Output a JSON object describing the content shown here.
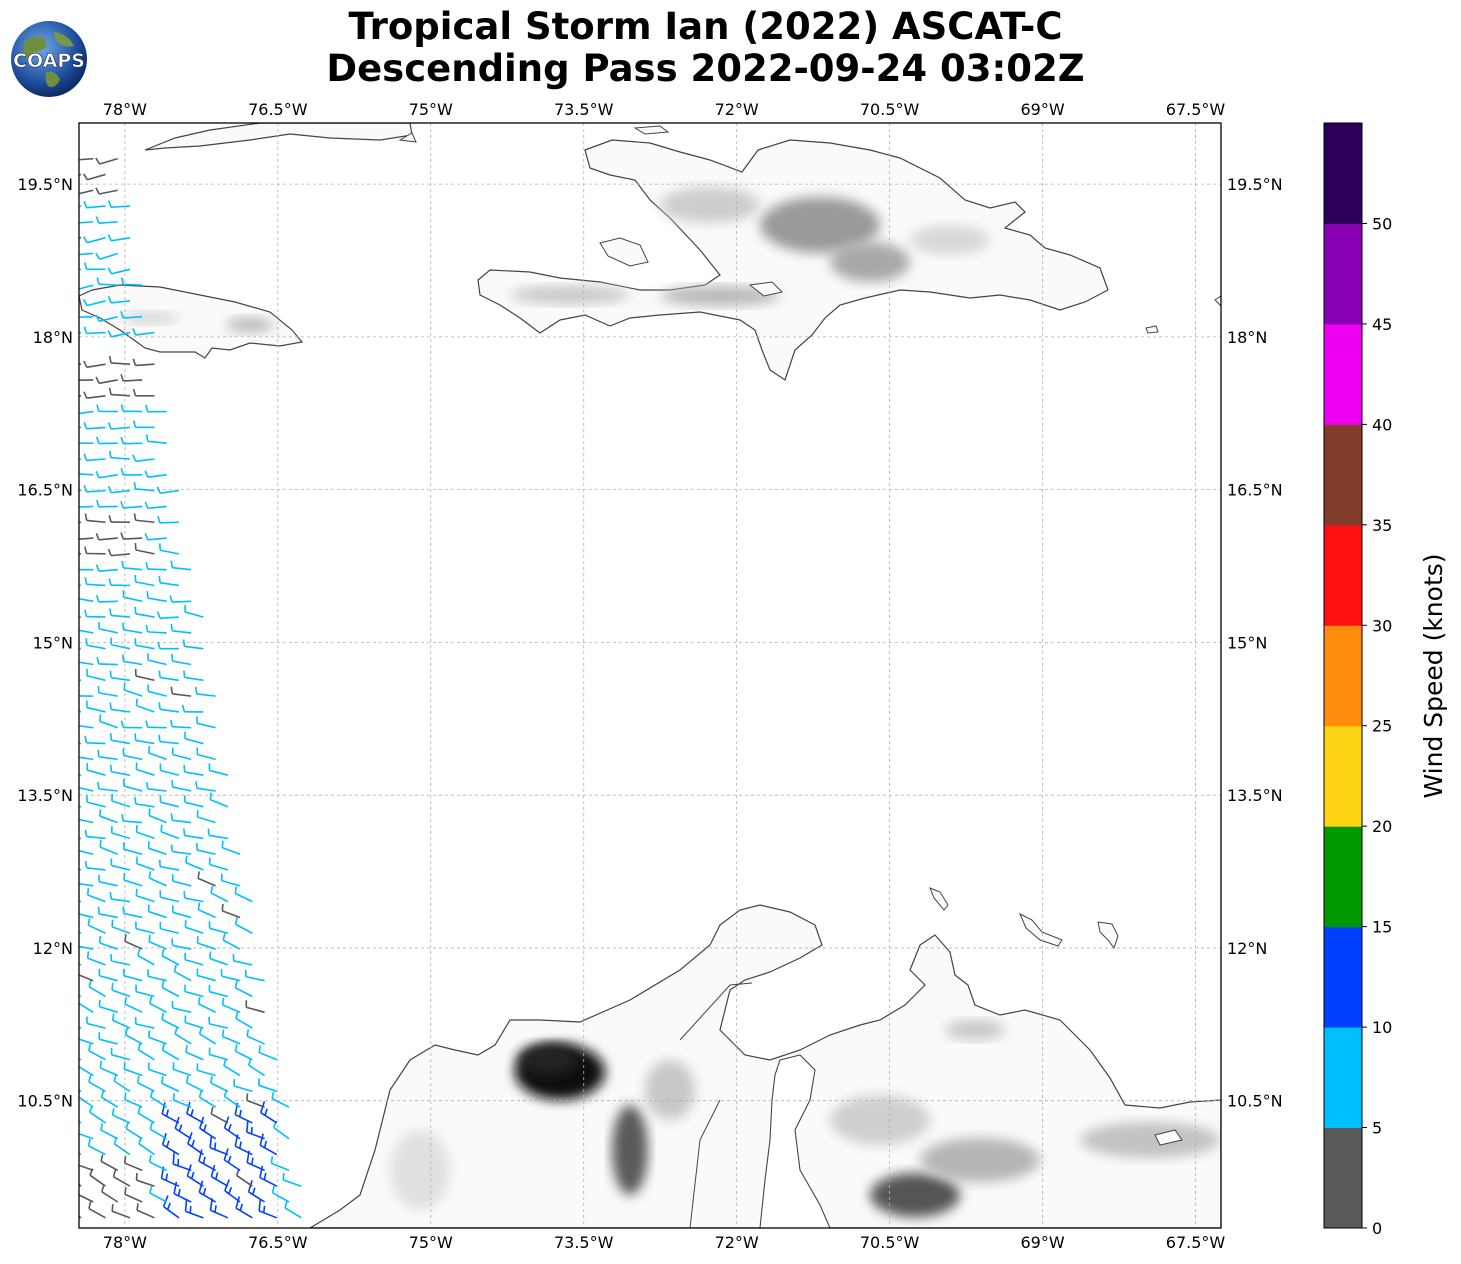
{
  "title_line1": "Tropical Storm Ian (2022) ASCAT-C",
  "title_line2": "Descending Pass 2022-09-24 03:02Z",
  "logo_text": "COAPS",
  "map": {
    "lon_range": [
      -78.45,
      -67.25
    ],
    "lat_range": [
      9.25,
      20.1
    ],
    "lon_ticks": [
      {
        "value": -78,
        "label": "78°W"
      },
      {
        "value": -76.5,
        "label": "76.5°W"
      },
      {
        "value": -75,
        "label": "75°W"
      },
      {
        "value": -73.5,
        "label": "73.5°W"
      },
      {
        "value": -72,
        "label": "72°W"
      },
      {
        "value": -70.5,
        "label": "70.5°W"
      },
      {
        "value": -69,
        "label": "69°W"
      },
      {
        "value": -67.5,
        "label": "67.5°W"
      }
    ],
    "lat_ticks": [
      {
        "value": 19.5,
        "label": "19.5°N"
      },
      {
        "value": 18,
        "label": "18°N"
      },
      {
        "value": 16.5,
        "label": "16.5°N"
      },
      {
        "value": 15,
        "label": "15°N"
      },
      {
        "value": 13.5,
        "label": "13.5°N"
      },
      {
        "value": 12,
        "label": "12°N"
      },
      {
        "value": 10.5,
        "label": "10.5°N"
      }
    ],
    "gridlines": true,
    "coastline_color": "#444444"
  },
  "colorbar": {
    "label": "Wind Speed (knots)",
    "ticks": [
      "0",
      "5",
      "10",
      "15",
      "20",
      "25",
      "30",
      "35",
      "40",
      "45",
      "50"
    ],
    "bins": [
      {
        "min": 0,
        "max": 5,
        "color": "#595959"
      },
      {
        "min": 5,
        "max": 10,
        "color": "#00bfff"
      },
      {
        "min": 10,
        "max": 15,
        "color": "#0040ff"
      },
      {
        "min": 15,
        "max": 20,
        "color": "#009900"
      },
      {
        "min": 20,
        "max": 25,
        "color": "#ffd414"
      },
      {
        "min": 25,
        "max": 30,
        "color": "#ff8c0a"
      },
      {
        "min": 30,
        "max": 35,
        "color": "#ff1010"
      },
      {
        "min": 35,
        "max": 40,
        "color": "#823c2a"
      },
      {
        "min": 40,
        "max": 45,
        "color": "#f000f0"
      },
      {
        "min": 45,
        "max": 50,
        "color": "#8a00b4"
      },
      {
        "min": 50,
        "max": 55,
        "color": "#2e005e"
      }
    ]
  },
  "swath": {
    "lat_start": 9.35,
    "lat_end": 19.75,
    "west_lon": -78.45,
    "east_lon_at_south": -76.2,
    "east_lon_at_north": -78.0,
    "typical_wind_knots": 8,
    "strong_wind_knots": 12,
    "weak_wind_knots": 4
  }
}
